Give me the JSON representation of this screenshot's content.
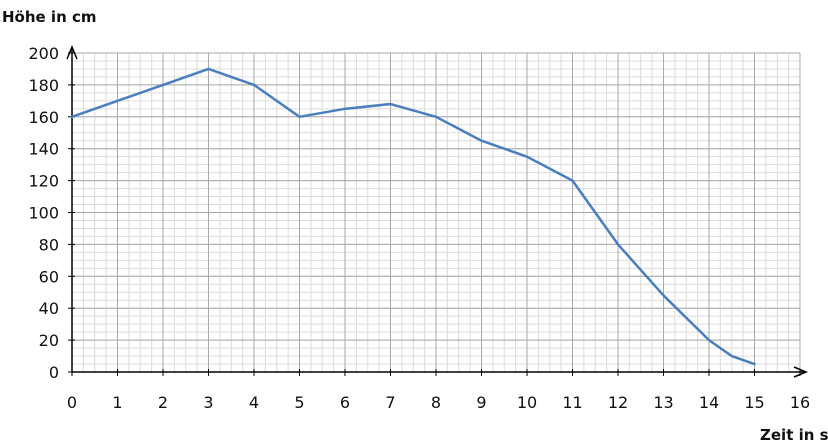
{
  "chart_data": {
    "type": "line",
    "title": "",
    "ylabel": "Höhe in cm",
    "xlabel": "Zeit in s",
    "xlim": [
      0,
      16
    ],
    "ylim": [
      0,
      200
    ],
    "x_ticks": [
      "0",
      "1",
      "2",
      "3",
      "4",
      "5",
      "6",
      "7",
      "8",
      "9",
      "10",
      "11",
      "12",
      "13",
      "14",
      "15",
      "16"
    ],
    "y_ticks": [
      "0",
      "20",
      "40",
      "60",
      "80",
      "100",
      "120",
      "140",
      "160",
      "180",
      "200"
    ],
    "x_minor_step": 0.25,
    "y_minor_step": 5,
    "grid": true,
    "series": [
      {
        "color": "#4a7ebf",
        "points": [
          [
            0,
            160
          ],
          [
            1,
            170
          ],
          [
            2,
            180
          ],
          [
            3,
            190
          ],
          [
            4,
            180
          ],
          [
            5,
            160
          ],
          [
            6,
            165
          ],
          [
            7,
            168
          ],
          [
            8,
            160
          ],
          [
            9,
            145
          ],
          [
            10,
            135
          ],
          [
            11,
            120
          ],
          [
            12,
            80
          ],
          [
            13,
            48
          ],
          [
            14,
            20
          ],
          [
            14.5,
            10
          ],
          [
            15,
            5
          ]
        ]
      }
    ]
  }
}
